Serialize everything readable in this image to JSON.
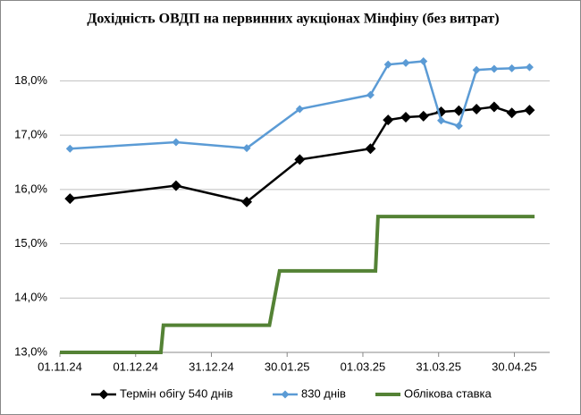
{
  "chart_data": {
    "type": "line",
    "title": "Дохідність ОВДП на первинних аукціонах Мінфіну (без витрат)",
    "x": [
      "2024-11-05",
      "2024-12-17",
      "2025-01-14",
      "2025-02-04",
      "2025-03-04",
      "2025-03-11",
      "2025-03-18",
      "2025-03-25",
      "2025-04-01",
      "2025-04-08",
      "2025-04-15",
      "2025-04-22",
      "2025-04-29",
      "2025-05-06"
    ],
    "series": [
      {
        "name": "Термін обігу 540 днів",
        "color": "#000000",
        "marker": "diamond",
        "values": [
          15.83,
          16.07,
          15.77,
          16.55,
          16.75,
          17.28,
          17.33,
          17.35,
          17.43,
          17.45,
          17.48,
          17.52,
          17.41,
          17.46
        ]
      },
      {
        "name": "830 днів",
        "color": "#5b9bd5",
        "marker": "diamond",
        "values": [
          16.75,
          16.87,
          16.76,
          17.48,
          17.74,
          18.3,
          18.33,
          18.36,
          17.27,
          17.17,
          18.2,
          18.22,
          18.23,
          18.25
        ]
      },
      {
        "name": "Облікова ставка",
        "color": "#548235",
        "x": [
          "2024-11-01",
          "2024-12-11",
          "2024-12-12",
          "2025-01-23",
          "2025-01-27",
          "2025-03-06",
          "2025-03-07",
          "2025-05-08"
        ],
        "values": [
          13.0,
          13.0,
          13.5,
          13.5,
          14.5,
          14.5,
          15.5,
          15.5
        ]
      }
    ],
    "xlim": [
      "2024-11-01",
      "2025-05-14"
    ],
    "xticks": [
      {
        "value": "2024-11-01",
        "label": "01.11.24"
      },
      {
        "value": "2024-12-01",
        "label": "01.12.24"
      },
      {
        "value": "2024-12-31",
        "label": "31.12.24"
      },
      {
        "value": "2025-01-30",
        "label": "30.01.25"
      },
      {
        "value": "2025-03-01",
        "label": "01.03.25"
      },
      {
        "value": "2025-03-31",
        "label": "31.03.25"
      },
      {
        "value": "2025-04-30",
        "label": "30.04.25"
      }
    ],
    "ylim": [
      13,
      18.5
    ],
    "yticks": [
      {
        "value": 13,
        "label": "13,0%"
      },
      {
        "value": 14,
        "label": "14,0%"
      },
      {
        "value": 15,
        "label": "15,0%"
      },
      {
        "value": 16,
        "label": "16,0%"
      },
      {
        "value": 17,
        "label": "17,0%"
      },
      {
        "value": 18,
        "label": "18,0%"
      }
    ],
    "grid": true,
    "legend": "bottom"
  }
}
